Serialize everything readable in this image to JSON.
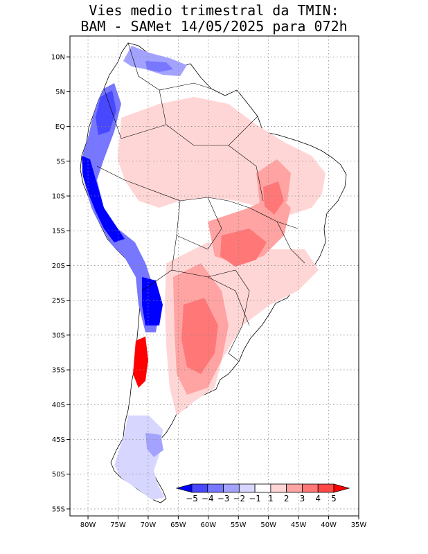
{
  "title": {
    "line1": "Vies medio trimestral da TMIN:",
    "line2": "BAM - SAMet 14/05/2025  para 072h"
  },
  "map": {
    "region": "South America",
    "variable": "TMIN",
    "lon_range": [
      -83,
      -35
    ],
    "lat_range": [
      -56,
      13
    ],
    "lon_ticks": [
      {
        "value": -80,
        "label": "80W"
      },
      {
        "value": -75,
        "label": "75W"
      },
      {
        "value": -70,
        "label": "70W"
      },
      {
        "value": -65,
        "label": "65W"
      },
      {
        "value": -60,
        "label": "60W"
      },
      {
        "value": -55,
        "label": "55W"
      },
      {
        "value": -50,
        "label": "50W"
      },
      {
        "value": -45,
        "label": "45W"
      },
      {
        "value": -40,
        "label": "40W"
      },
      {
        "value": -35,
        "label": "35W"
      }
    ],
    "lat_ticks": [
      {
        "value": 10,
        "label": "10N"
      },
      {
        "value": 5,
        "label": "5N"
      },
      {
        "value": 0,
        "label": "EQ"
      },
      {
        "value": -5,
        "label": "5S"
      },
      {
        "value": -10,
        "label": "10S"
      },
      {
        "value": -15,
        "label": "15S"
      },
      {
        "value": -20,
        "label": "20S"
      },
      {
        "value": -25,
        "label": "25S"
      },
      {
        "value": -30,
        "label": "30S"
      },
      {
        "value": -35,
        "label": "35S"
      },
      {
        "value": -40,
        "label": "40S"
      },
      {
        "value": -45,
        "label": "45S"
      },
      {
        "value": -50,
        "label": "50S"
      },
      {
        "value": -55,
        "label": "55S"
      }
    ]
  },
  "colorbar": {
    "bins": [
      {
        "color": "#0000ff"
      },
      {
        "color": "#4848ff"
      },
      {
        "color": "#7777ff"
      },
      {
        "color": "#a3a3ff"
      },
      {
        "color": "#d6d6ff"
      },
      {
        "color": "#ffffff"
      },
      {
        "color": "#ffd6d6"
      },
      {
        "color": "#ffa3a3"
      },
      {
        "color": "#ff7777"
      },
      {
        "color": "#ff4848"
      },
      {
        "color": "#ff0000"
      }
    ],
    "labels": [
      {
        "value": -5,
        "label": "−5"
      },
      {
        "value": -4,
        "label": "−4"
      },
      {
        "value": -3,
        "label": "−3"
      },
      {
        "value": -2,
        "label": "−2"
      },
      {
        "value": -1,
        "label": "−1"
      },
      {
        "value": 1,
        "label": "1"
      },
      {
        "value": 2,
        "label": "2"
      },
      {
        "value": 3,
        "label": "3"
      },
      {
        "value": 4,
        "label": "4"
      },
      {
        "value": 5,
        "label": "5"
      }
    ]
  }
}
